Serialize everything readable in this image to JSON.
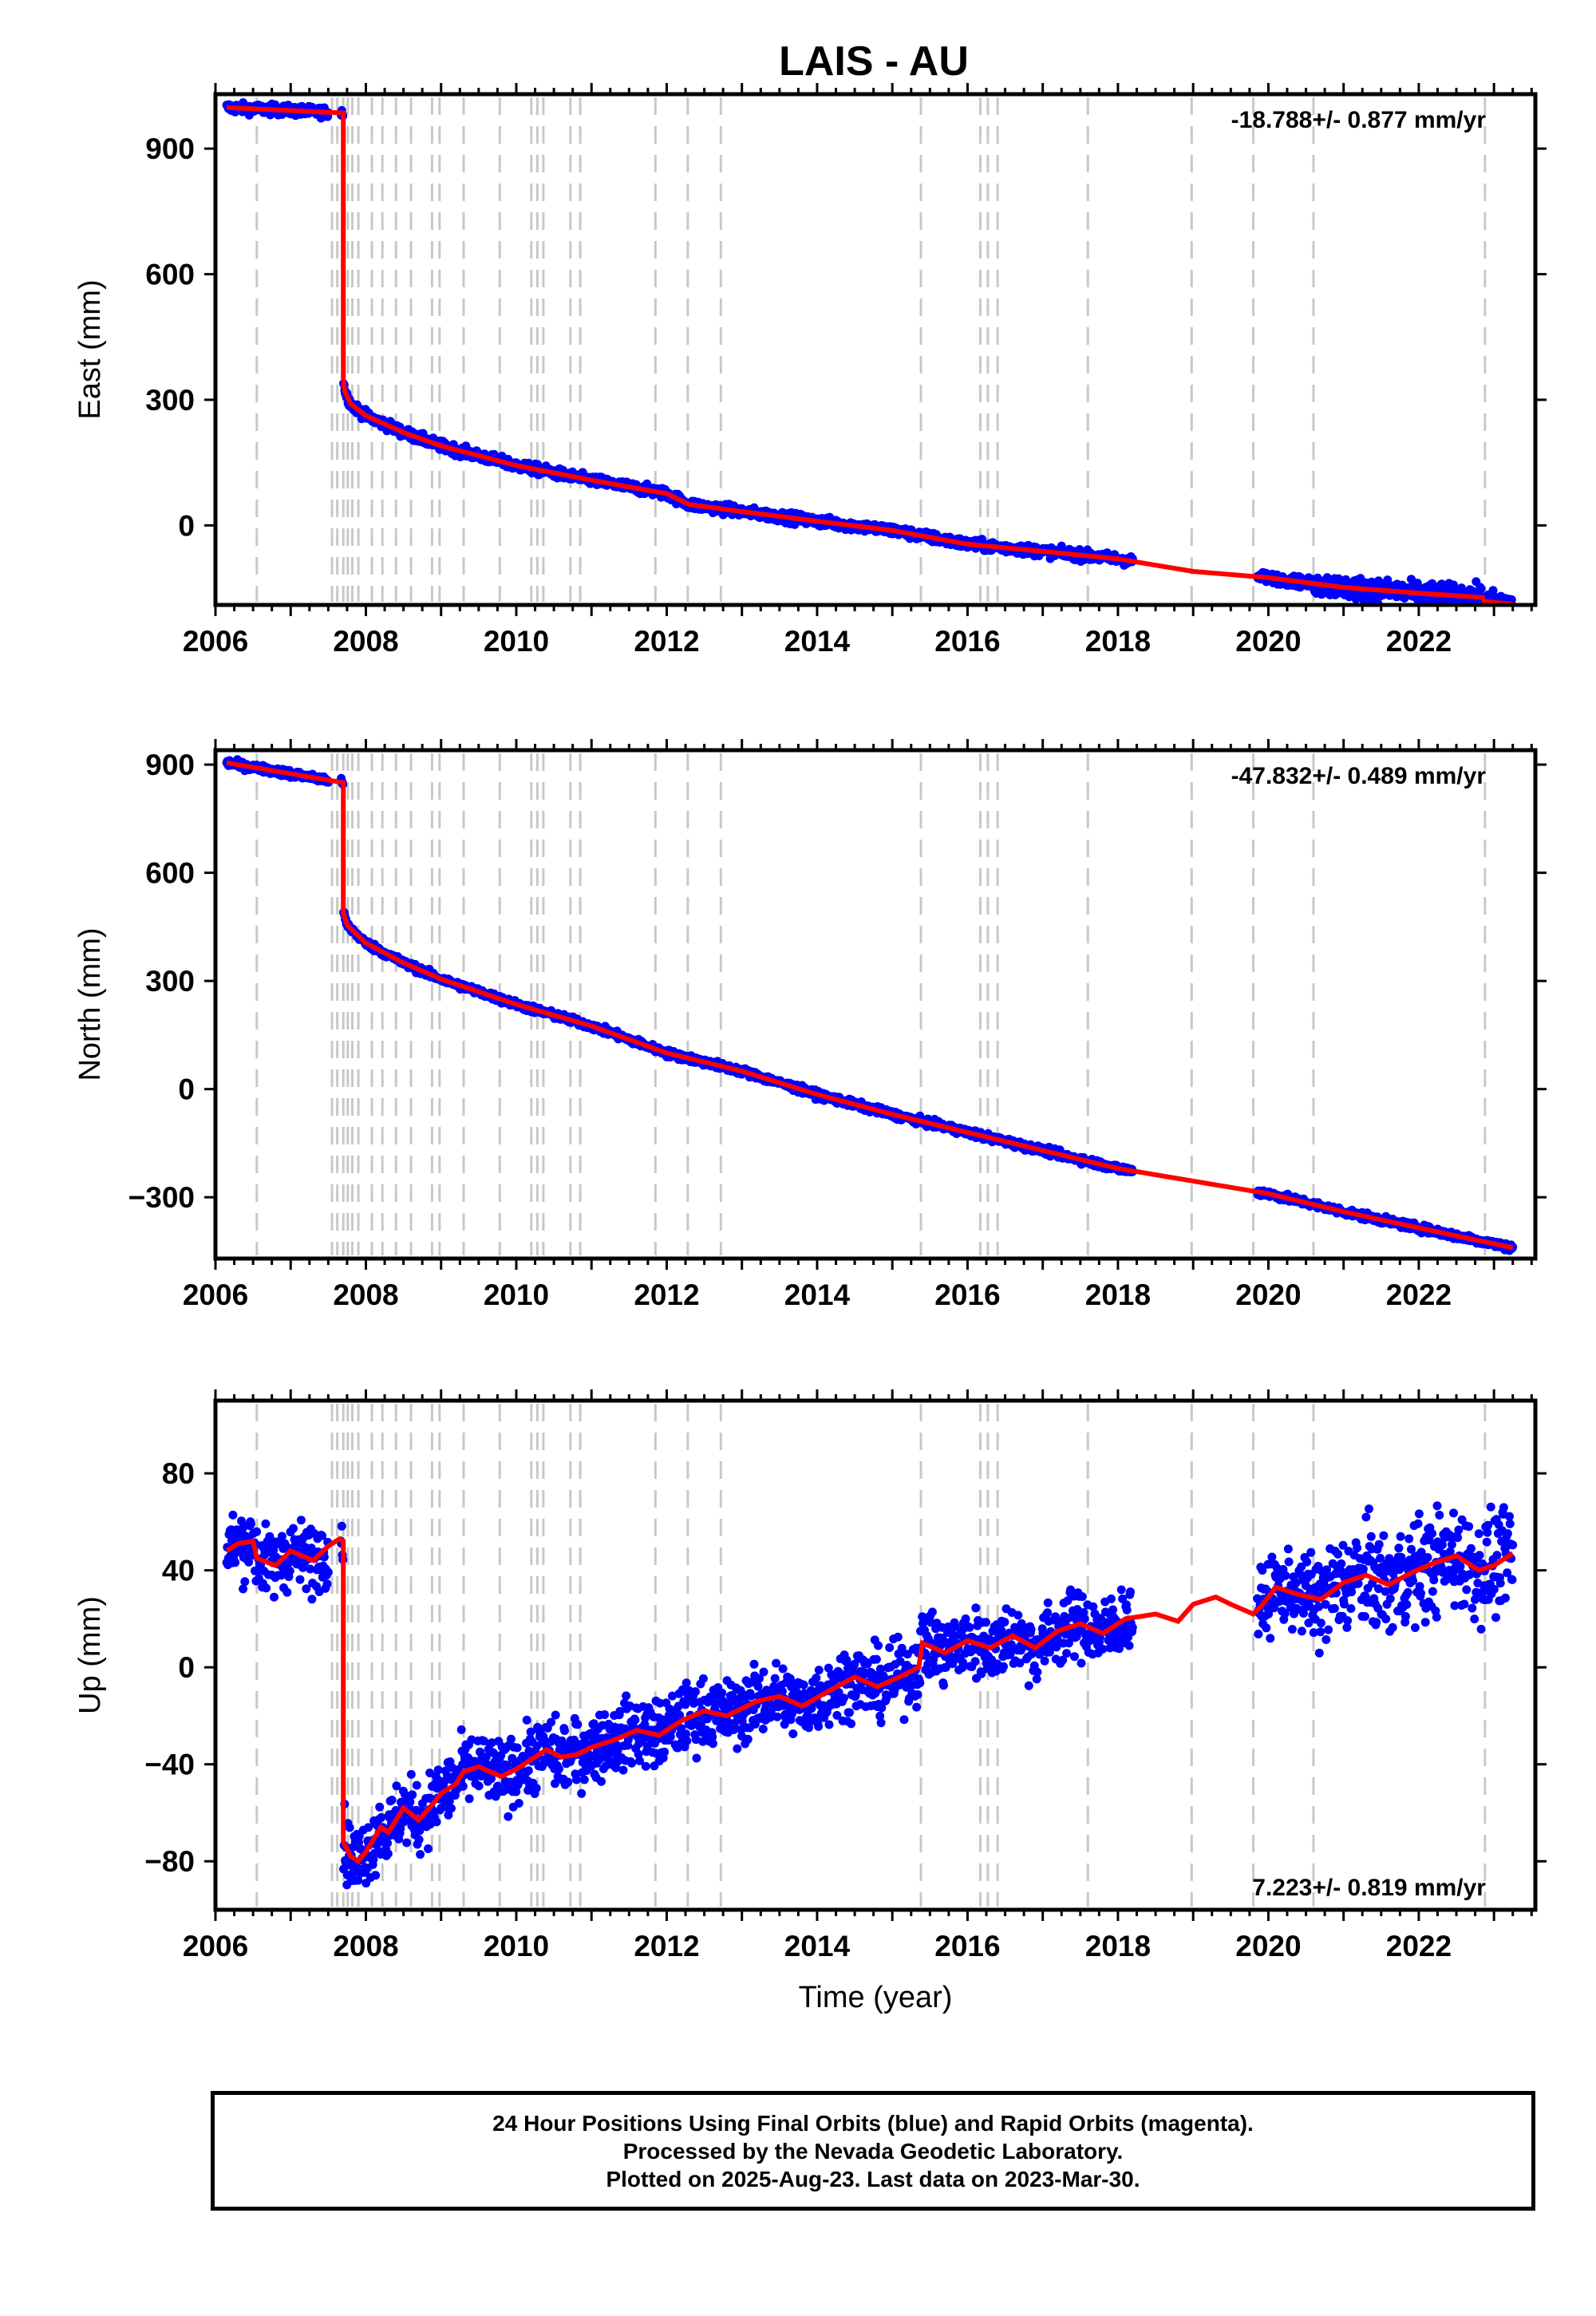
{
  "title": "LAIS - AU",
  "colors": {
    "points": "#0000ff",
    "model": "#ff0000",
    "event_lines": "#c8c8c8",
    "frame": "#000000"
  },
  "chart_data": [
    {
      "type": "scatter",
      "component": "east",
      "ylabel": "East (mm)",
      "xlabel": "",
      "xlim": [
        2006.0,
        2023.55
      ],
      "ylim": [
        -190,
        1030
      ],
      "xticks": [
        2006,
        2008,
        2010,
        2012,
        2014,
        2016,
        2018,
        2020,
        2022
      ],
      "yticks": [
        0,
        300,
        600,
        900
      ],
      "rate_text": "-18.788+/- 0.877 mm/yr",
      "rate_position": "top-right",
      "grid": false,
      "model_series": {
        "name": "",
        "x": [
          2006.15,
          2007.7,
          2007.7,
          2007.72,
          2007.8,
          2008.0,
          2008.5,
          2009.0,
          2010.0,
          2011.0,
          2012.0,
          2012.3,
          2013.0,
          2014.0,
          2015.0,
          2016.0,
          2017.0,
          2018.0,
          2019.0,
          2020.0,
          2021.0,
          2022.0,
          2022.85,
          2022.87,
          2023.25
        ],
        "y": [
          998,
          985,
          350,
          320,
          290,
          262,
          222,
          190,
          143,
          108,
          76,
          50,
          33,
          10,
          -12,
          -45,
          -62,
          -80,
          -110,
          -125,
          -148,
          -162,
          -172,
          -182,
          -188
        ]
      },
      "observation_noise_mm": 6,
      "observation_gaps": [
        [
          2018.2,
          2019.85
        ]
      ]
    },
    {
      "type": "scatter",
      "component": "north",
      "ylabel": "North (mm)",
      "xlabel": "",
      "xlim": [
        2006.0,
        2023.55
      ],
      "ylim": [
        -470,
        940
      ],
      "xticks": [
        2006,
        2008,
        2010,
        2012,
        2014,
        2016,
        2018,
        2020,
        2022
      ],
      "yticks": [
        -300,
        0,
        300,
        600,
        900
      ],
      "rate_text": "-47.832+/- 0.489 mm/yr",
      "rate_position": "top-right",
      "grid": false,
      "model_series": {
        "name": "",
        "x": [
          2006.15,
          2007.7,
          2007.7,
          2007.75,
          2008.0,
          2008.5,
          2009.0,
          2010.0,
          2011.0,
          2012.0,
          2013.0,
          2014.0,
          2015.0,
          2016.0,
          2017.0,
          2018.0,
          2019.0,
          2020.0,
          2021.0,
          2022.0,
          2023.25
        ],
        "y": [
          905,
          850,
          490,
          455,
          405,
          350,
          305,
          235,
          175,
          100,
          50,
          -15,
          -70,
          -120,
          -170,
          -220,
          -255,
          -290,
          -340,
          -385,
          -440
        ]
      },
      "observation_noise_mm": 5,
      "observation_gaps": [
        [
          2018.2,
          2019.85
        ]
      ]
    },
    {
      "type": "scatter",
      "component": "up",
      "ylabel": "Up (mm)",
      "xlabel": "Time (year)",
      "xlim": [
        2006.0,
        2023.55
      ],
      "ylim": [
        -100,
        110
      ],
      "xticks": [
        2006,
        2008,
        2010,
        2012,
        2014,
        2016,
        2018,
        2020,
        2022
      ],
      "yticks": [
        -80,
        -40,
        0,
        40,
        80
      ],
      "rate_text": "7.223+/- 0.819 mm/yr",
      "rate_position": "bottom-right",
      "grid": false,
      "model_series": {
        "name": "",
        "x": [
          2006.15,
          2006.3,
          2006.5,
          2006.55,
          2006.8,
          2007.0,
          2007.3,
          2007.5,
          2007.65,
          2007.7,
          2007.7,
          2007.8,
          2007.9,
          2008.0,
          2008.2,
          2008.3,
          2008.5,
          2008.7,
          2008.9,
          2009.0,
          2009.2,
          2009.3,
          2009.5,
          2009.8,
          2010.0,
          2010.2,
          2010.4,
          2010.6,
          2010.8,
          2011.0,
          2011.3,
          2011.6,
          2011.9,
          2012.2,
          2012.5,
          2012.8,
          2013.2,
          2013.5,
          2013.8,
          2014.2,
          2014.5,
          2014.8,
          2015.1,
          2015.35,
          2015.4,
          2015.7,
          2016.0,
          2016.3,
          2016.6,
          2016.9,
          2017.2,
          2017.5,
          2017.8,
          2018.1,
          2018.5,
          2018.8,
          2019.0,
          2019.3,
          2019.5,
          2019.8,
          2019.9,
          2020.1,
          2020.4,
          2020.7,
          2021.0,
          2021.3,
          2021.6,
          2021.9,
          2022.2,
          2022.5,
          2022.8,
          2023.0,
          2023.25
        ],
        "y": [
          48,
          51,
          52,
          45,
          42,
          48,
          44,
          50,
          53,
          52,
          -72,
          -78,
          -80,
          -76,
          -66,
          -68,
          -58,
          -63,
          -56,
          -52,
          -48,
          -43,
          -41,
          -45,
          -42,
          -38,
          -34,
          -37,
          -36,
          -33,
          -30,
          -26,
          -28,
          -22,
          -18,
          -20,
          -14,
          -12,
          -16,
          -9,
          -4,
          -8,
          -4,
          0,
          10,
          6,
          11,
          8,
          13,
          8,
          15,
          18,
          14,
          20,
          22,
          19,
          26,
          29,
          26,
          22,
          25,
          33,
          30,
          28,
          35,
          38,
          34,
          39,
          43,
          46,
          40,
          42,
          47
        ]
      },
      "observation_noise_mm": 7,
      "observation_gaps": [
        [
          2018.2,
          2019.85
        ]
      ]
    }
  ],
  "event_lines_years": [
    2006.55,
    2007.55,
    2007.62,
    2007.7,
    2007.76,
    2007.82,
    2007.9,
    2008.08,
    2008.22,
    2008.4,
    2008.6,
    2008.88,
    2008.98,
    2009.3,
    2009.78,
    2010.2,
    2010.28,
    2010.36,
    2010.72,
    2010.85,
    2011.85,
    2012.28,
    2012.72,
    2015.38,
    2016.17,
    2016.27,
    2016.4,
    2017.6,
    2018.98,
    2019.8,
    2020.6,
    2022.88
  ],
  "footer": {
    "line1": "24 Hour Positions Using Final Orbits (blue) and Rapid Orbits (magenta).",
    "line2": "Processed by the Nevada Geodetic Laboratory.",
    "line3": "Plotted on 2025-Aug-23. Last data on 2023-Mar-30."
  }
}
